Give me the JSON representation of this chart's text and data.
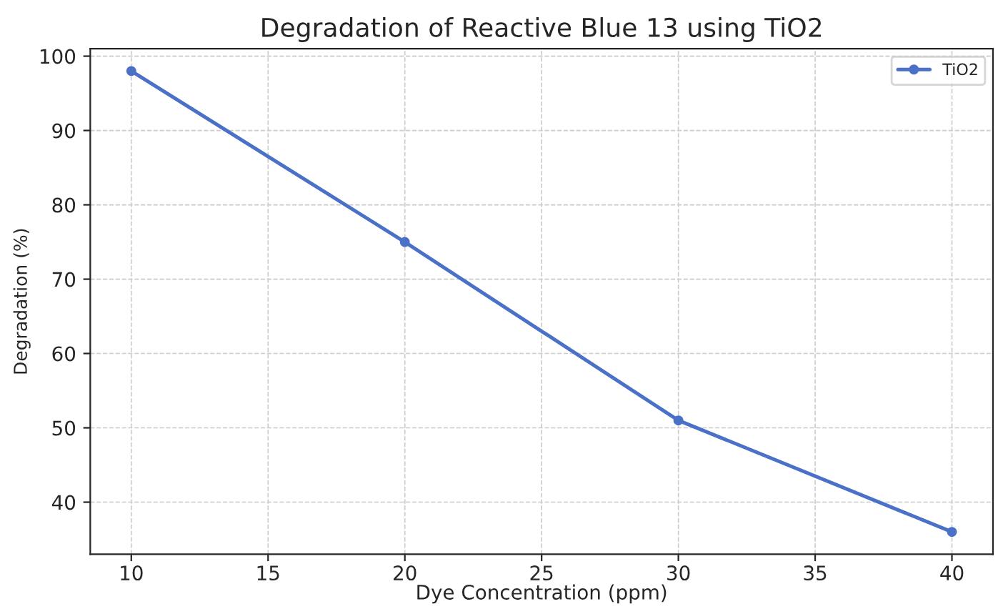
{
  "chart_data": {
    "type": "line",
    "title": "Degradation of Reactive Blue 13 using TiO2",
    "xlabel": "Dye Concentration (ppm)",
    "ylabel": "Degradation (%)",
    "x": [
      10,
      20,
      30,
      40
    ],
    "series": [
      {
        "name": "TiO2",
        "color": "#4a70c8",
        "values": [
          98,
          75,
          51,
          36
        ]
      }
    ],
    "xlim": [
      8.5,
      41.5
    ],
    "xticks": [
      10,
      15,
      20,
      25,
      30,
      35,
      40
    ],
    "ylim": [
      33,
      101
    ],
    "yticks": [
      40,
      50,
      60,
      70,
      80,
      90,
      100
    ],
    "grid": true,
    "legend": "top right",
    "marker": "circle",
    "line_style": "solid"
  }
}
